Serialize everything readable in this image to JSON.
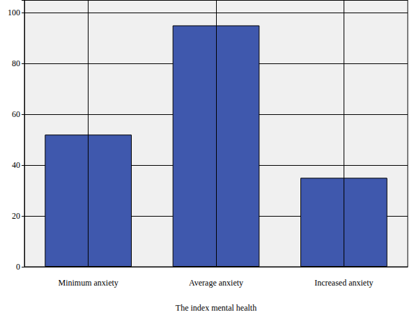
{
  "chart_data": {
    "type": "bar",
    "x_label": "The index mental health",
    "categories": [
      "Minimum anxiety",
      "Average anxiety",
      "Increased anxiety"
    ],
    "values": [
      52,
      95,
      35
    ],
    "color": "#3f58ad",
    "ylim": [
      0,
      105
    ],
    "yticks": [
      0,
      20,
      40,
      60,
      80,
      100
    ],
    "grid": true
  }
}
